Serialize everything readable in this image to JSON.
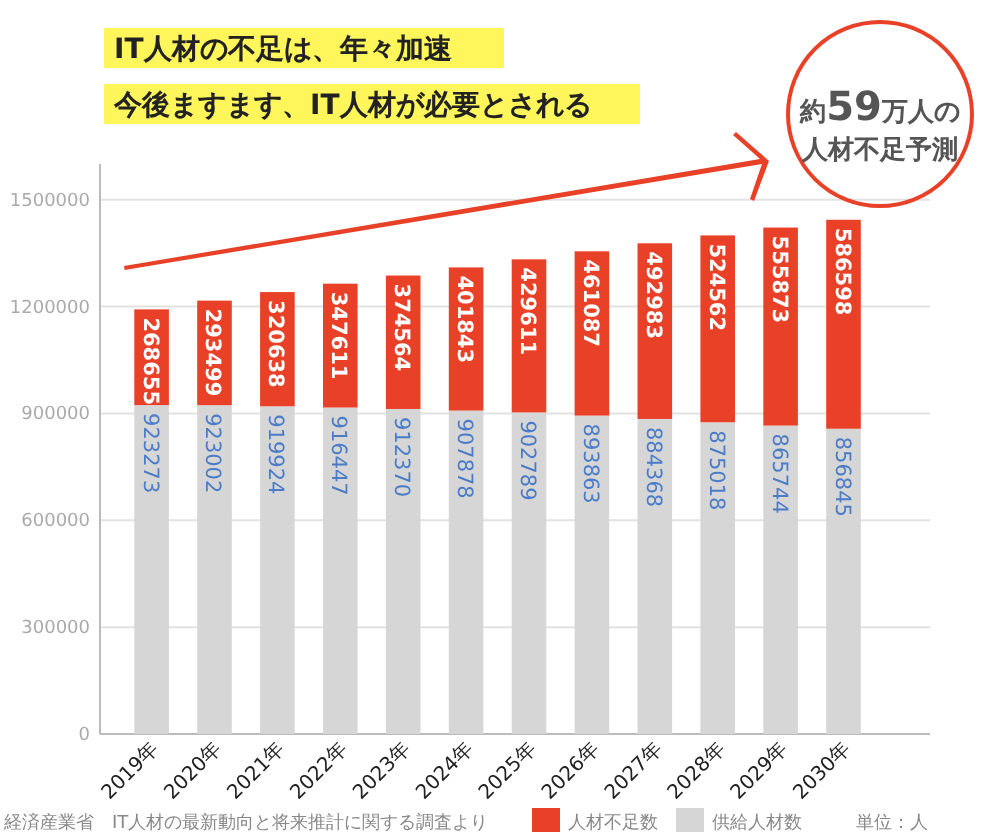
{
  "chart_data": {
    "type": "bar",
    "title": "IT人材の不足は、年々加速",
    "subtitle": "今後ますます、IT人材が必要とされる",
    "categories": [
      "2019年",
      "2020年",
      "2021年",
      "2022年",
      "2023年",
      "2024年",
      "2025年",
      "2026年",
      "2027年",
      "2028年",
      "2029年",
      "2030年"
    ],
    "series": [
      {
        "name": "供給人材数",
        "color": "#d6d6d6",
        "values": [
          923273,
          923002,
          919924,
          916447,
          912370,
          907878,
          902789,
          893863,
          884368,
          875018,
          865744,
          856845
        ]
      },
      {
        "name": "人材不足数",
        "color": "#e94128",
        "values": [
          268655,
          293499,
          320638,
          347611,
          374564,
          401843,
          429611,
          461087,
          492983,
          524562,
          555873,
          586598
        ]
      }
    ],
    "stacked": true,
    "data_labels": true,
    "ylim": [
      0,
      1600000
    ],
    "yticks": [
      0,
      300000,
      600000,
      900000,
      1200000,
      1500000
    ],
    "grid": "y",
    "legend": "bottom",
    "annotations": [
      "約59万人の",
      "人材不足予測",
      "経済産業省　IT人材の最新動向と将来推計に関する調査より",
      "単位：人"
    ]
  }
}
